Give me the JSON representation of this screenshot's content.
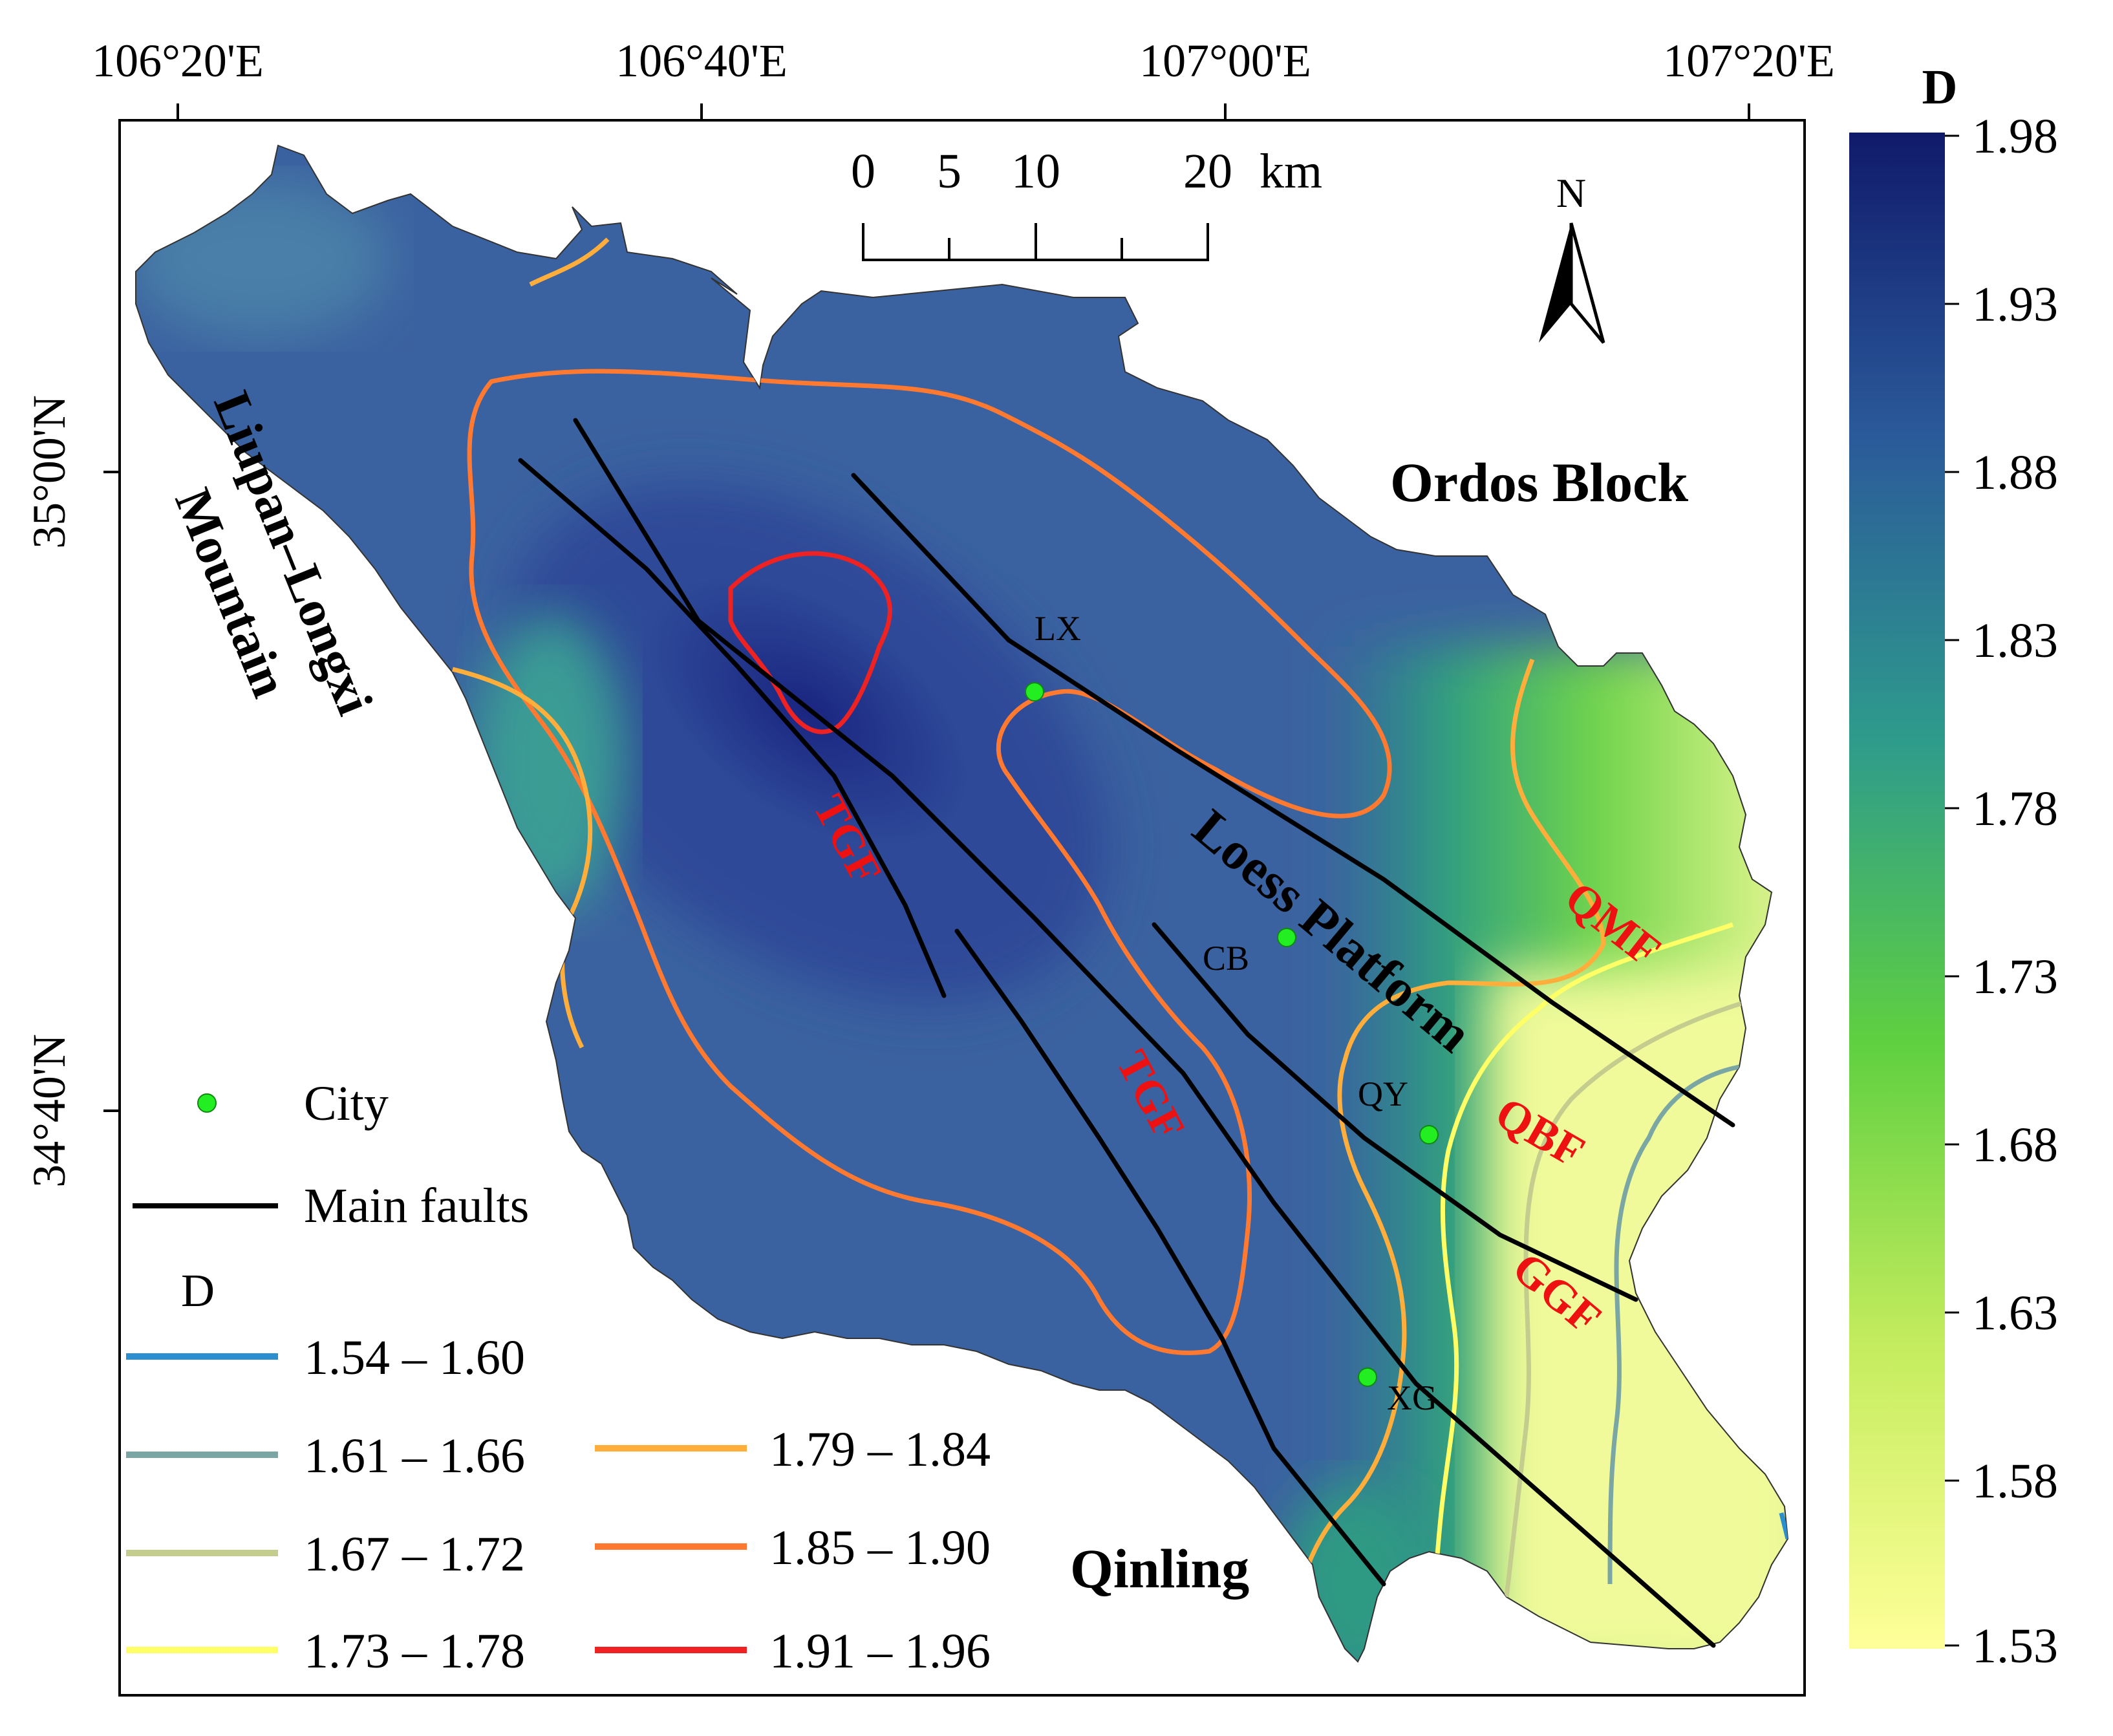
{
  "axes": {
    "longitude_labels": [
      "106°20'E",
      "106°40'E",
      "107°00'E",
      "107°20'E"
    ],
    "latitude_labels": [
      "35°00'N",
      "34°40'N"
    ]
  },
  "scale_bar": {
    "ticks": [
      "0",
      "5",
      "10",
      "20"
    ],
    "unit": "km"
  },
  "north_arrow": {
    "label": "N",
    "icon": "north-arrow-icon"
  },
  "region_labels": {
    "ordos": "Ordos Block",
    "liupan_line1": "Liupan–Longxi",
    "liupan_line2": "Mountain",
    "loess": "Loess Platform",
    "qinling": "Qinling"
  },
  "fault_labels": {
    "tgf_north": "TGF",
    "tgf_south": "TGF",
    "qmf": "QMF",
    "qbf": "QBF",
    "ggf": "GGF"
  },
  "cities": [
    {
      "label": "LX"
    },
    {
      "label": "CB"
    },
    {
      "label": "QY"
    },
    {
      "label": "XG"
    }
  ],
  "legend": {
    "city_label": "City",
    "faults_label": "Main faults",
    "d_title": "D",
    "classes": [
      {
        "range": "1.54 – 1.60",
        "color": "#2b8fcf"
      },
      {
        "range": "1.61 – 1.66",
        "color": "#7aa6a3"
      },
      {
        "range": "1.67 – 1.72",
        "color": "#c4cc8e"
      },
      {
        "range": "1.73 – 1.78",
        "color": "#ffff66"
      },
      {
        "range": "1.79 – 1.84",
        "color": "#ffae3c"
      },
      {
        "range": "1.85 – 1.90",
        "color": "#ff7a30"
      },
      {
        "range": "1.91 – 1.96",
        "color": "#ee2222"
      }
    ]
  },
  "colorbar": {
    "title": "D",
    "labels": [
      "1.98",
      "1.93",
      "1.88",
      "1.83",
      "1.78",
      "1.73",
      "1.68",
      "1.63",
      "1.58",
      "1.53"
    ],
    "colors": {
      "high": "#101a6b",
      "mid_high": "#2b5a9a",
      "mid": "#2e9b8c",
      "mid_low": "#5fd040",
      "low": "#ffff99"
    }
  },
  "colors": {
    "fault": "#000000",
    "fault_label": "#ee1111",
    "city_dot": "#22ee22"
  }
}
